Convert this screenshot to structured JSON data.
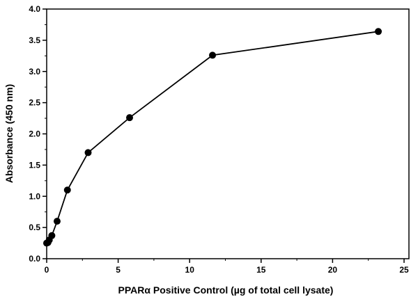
{
  "chart_data": {
    "type": "line",
    "xlabel": "PPARα Positive Control (µg of total cell lysate)",
    "ylabel": "Absorbance (450 nm)",
    "xlim": [
      0,
      25
    ],
    "ylim": [
      0,
      4.0
    ],
    "xticks": [
      "0",
      "5",
      "10",
      "15",
      "20",
      "25"
    ],
    "yticks": [
      "0.0",
      "0.5",
      "1.0",
      "1.5",
      "2.0",
      "2.5",
      "3.0",
      "3.5",
      "4.0"
    ],
    "grid": false,
    "series": [
      {
        "x": [
          0,
          0.09,
          0.18,
          0.36,
          0.73,
          1.45,
          2.9,
          5.8,
          11.6,
          23.2
        ],
        "y": [
          0.25,
          0.26,
          0.3,
          0.37,
          0.6,
          1.1,
          1.7,
          2.26,
          3.26,
          3.64
        ],
        "color": "#000000"
      }
    ]
  }
}
